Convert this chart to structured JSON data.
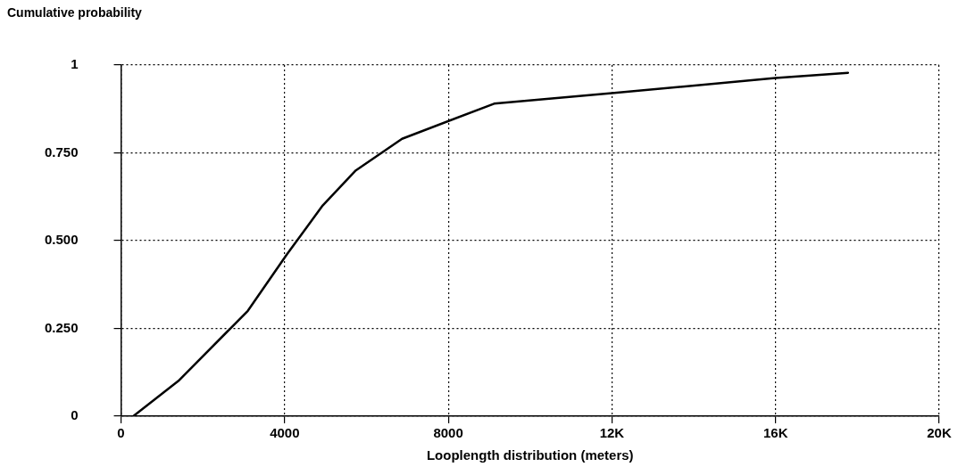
{
  "chart_data": {
    "type": "line",
    "ylabel": "Cumulative probability",
    "xlabel": "Looplength distribution (meters)",
    "x": [
      300,
      1400,
      3100,
      4050,
      4930,
      5740,
      6870,
      9120,
      12000,
      16000,
      17770
    ],
    "series": [
      {
        "color": "#000000",
        "values": [
          0,
          0.1,
          0.3,
          0.46,
          0.6,
          0.7,
          0.79,
          0.89,
          0.92,
          0.963,
          0.978
        ]
      }
    ],
    "xlim": [
      0,
      20000
    ],
    "xticks": [
      0,
      4000,
      8000,
      {
        "value": 12000,
        "label": "12K"
      },
      {
        "value": 16000,
        "label": "16K"
      },
      {
        "value": 20000,
        "label": "20K"
      }
    ],
    "ylim": [
      0,
      1
    ],
    "yticks": [
      0,
      {
        "value": 0.25,
        "label": "0.250"
      },
      {
        "value": 0.5,
        "label": "0.500"
      },
      {
        "value": 0.75,
        "label": "0.750"
      },
      1
    ],
    "grid": true,
    "legend": false,
    "marker": "none",
    "line_style": "solid"
  }
}
